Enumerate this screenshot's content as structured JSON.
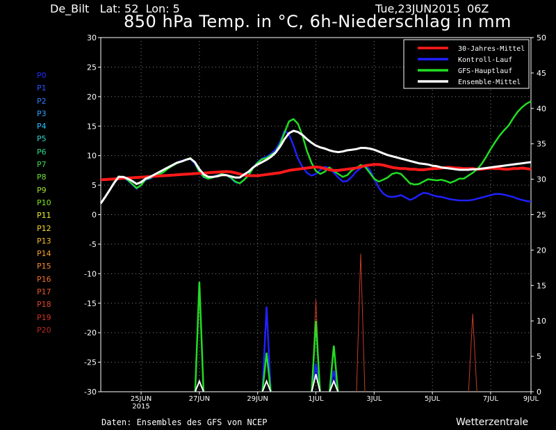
{
  "header": {
    "station": "De_Bilt   Lat: 52  Lon: 5",
    "datetime": "Tue,23JUN2015  06Z",
    "title": "850 hPa Temp. in °C, 6h-Niederschlag in mm"
  },
  "footer": {
    "source": "Daten: Ensembles des GFS von NCEP",
    "brand": "Wetterzentrale"
  },
  "members": [
    {
      "label": "P0",
      "color": "#1f2bff"
    },
    {
      "label": "P1",
      "color": "#2a55ff"
    },
    {
      "label": "P2",
      "color": "#2f7bff"
    },
    {
      "label": "P3",
      "color": "#2aa3ff"
    },
    {
      "label": "P4",
      "color": "#26c4ff"
    },
    {
      "label": "P5",
      "color": "#2ed4c8"
    },
    {
      "label": "P6",
      "color": "#33d98a"
    },
    {
      "label": "P7",
      "color": "#3fdc55"
    },
    {
      "label": "P8",
      "color": "#6fe03a"
    },
    {
      "label": "P9",
      "color": "#a6e22e"
    },
    {
      "label": "P10",
      "color": "#7fe81a"
    },
    {
      "label": "P11",
      "color": "#f0f02a"
    },
    {
      "label": "P12",
      "color": "#f5d82a"
    },
    {
      "label": "P13",
      "color": "#f5bd2a"
    },
    {
      "label": "P14",
      "color": "#f5a02a"
    },
    {
      "label": "P15",
      "color": "#f58a2a"
    },
    {
      "label": "P16",
      "color": "#f06e2a"
    },
    {
      "label": "P17",
      "color": "#e8582a"
    },
    {
      "label": "P18",
      "color": "#e0452a"
    },
    {
      "label": "P19",
      "color": "#d03226"
    },
    {
      "label": "P20",
      "color": "#b52a20"
    }
  ],
  "chart_data": {
    "type": "line",
    "x": [
      0,
      3,
      6,
      9,
      12,
      15,
      18,
      21,
      24,
      27,
      30,
      33,
      36,
      39,
      42,
      45,
      48,
      51,
      54,
      57,
      60,
      63,
      66,
      69,
      72,
      75,
      78,
      81,
      84,
      87,
      90,
      93,
      96,
      99,
      102,
      105,
      108,
      111,
      114,
      117,
      120,
      123,
      126,
      129,
      132,
      135,
      138,
      141,
      144,
      147,
      150,
      153,
      156,
      159,
      162,
      165,
      168,
      171,
      174,
      177,
      180,
      183,
      186,
      189,
      192,
      195,
      198,
      201,
      204,
      207,
      210,
      213,
      216,
      219,
      222,
      225,
      228,
      231,
      234,
      237,
      240,
      243,
      246,
      249,
      252,
      255,
      258,
      261,
      264,
      267,
      270,
      273,
      276,
      279,
      282,
      285,
      288
    ],
    "x_ticks": [
      {
        "label": "25JUN",
        "x": 27
      },
      {
        "label": "27JUN",
        "x": 66
      },
      {
        "label": "29JUN",
        "x": 105
      },
      {
        "label": "1JUL",
        "x": 144
      },
      {
        "label": "3JUL",
        "x": 183
      },
      {
        "label": "5JUL",
        "x": 222
      },
      {
        "label": "7JUL",
        "x": 261
      },
      {
        "label": "9JUL",
        "x": 288
      }
    ],
    "x_sublabel": "2015",
    "ylim_left": [
      -30,
      30
    ],
    "yticks_left": [
      "30",
      "25",
      "20",
      "15",
      "10",
      "5",
      "0",
      "-5",
      "-10",
      "-15",
      "-20",
      "-25",
      "-30"
    ],
    "ylim_right": [
      0,
      50
    ],
    "yticks_right": [
      "50",
      "45",
      "40",
      "35",
      "30",
      "25",
      "20",
      "15",
      "10",
      "5",
      "0"
    ],
    "grid": true,
    "legend_position": "top-right",
    "legend": [
      {
        "name": "30-Jahres-Mittel",
        "color": "#ff1a1a"
      },
      {
        "name": "Kontroll-Lauf",
        "color": "#2020ff"
      },
      {
        "name": "GFS-Hauptlauf",
        "color": "#22dd22"
      },
      {
        "name": "Ensemble-Mittel",
        "color": "#ffffff"
      }
    ],
    "temperature": {
      "climatology_30yr": [
        5.9,
        5.95,
        6,
        6.05,
        6.1,
        6.15,
        6.2,
        6.25,
        6.3,
        6.35,
        6.4,
        6.45,
        6.5,
        6.55,
        6.6,
        6.65,
        6.7,
        6.75,
        6.8,
        6.85,
        6.9,
        6.95,
        7,
        7.05,
        7.1,
        7.15,
        7.2,
        7.25,
        7.3,
        7.25,
        7.1,
        6.9,
        6.7,
        6.6,
        6.6,
        6.6,
        6.7,
        6.8,
        6.9,
        7,
        7.1,
        7.3,
        7.5,
        7.6,
        7.7,
        7.8,
        7.9,
        8,
        8.1,
        8,
        7.8,
        7.6,
        7.5,
        7.5,
        7.6,
        7.7,
        7.8,
        7.9,
        8.1,
        8.3,
        8.4,
        8.5,
        8.5,
        8.4,
        8.2,
        8,
        7.9,
        7.8,
        7.8,
        7.7,
        7.7,
        7.6,
        7.6,
        7.7,
        7.8,
        7.8,
        7.9,
        8,
        8,
        7.9,
        7.9,
        7.8,
        7.8,
        7.8,
        7.7,
        7.7,
        7.8,
        7.9,
        7.8,
        7.8,
        7.7,
        7.7,
        7.8,
        7.8,
        7.9,
        7.8,
        7.7
      ],
      "gfs_main": [
        1.9,
        3,
        4.2,
        5.4,
        6.5,
        6.3,
        5.9,
        5.2,
        4.5,
        5,
        6,
        6.2,
        6.6,
        6.8,
        7.2,
        7.8,
        8.3,
        8.7,
        9,
        9.3,
        9.6,
        8.8,
        7.3,
        6.4,
        6.1,
        6.3,
        6.6,
        6.9,
        6.7,
        6.3,
        5.6,
        5.3,
        5.9,
        6.7,
        7.9,
        8.8,
        9.4,
        9.6,
        10.1,
        10.6,
        11.9,
        13.9,
        15.8,
        16.2,
        15.4,
        13.4,
        10.8,
        8.8,
        7.4,
        6.9,
        7.3,
        8,
        7.4,
        6.9,
        6.4,
        6.7,
        7.5,
        7.9,
        8.4,
        8.1,
        7.1,
        6.1,
        5.6,
        5.9,
        6.3,
        6.9,
        7.1,
        6.9,
        6.1,
        5.3,
        5.1,
        5.2,
        5.6,
        6,
        5.9,
        5.8,
        5.9,
        5.7,
        5.4,
        5.7,
        6.1,
        6.1,
        6.6,
        7.1,
        7.7,
        8.6,
        9.8,
        11.1,
        12.3,
        13.4,
        14.3,
        15.1,
        16.3,
        17.4,
        18.2,
        18.8,
        19.2
      ],
      "control_run": [
        1.9,
        3,
        4.2,
        5.4,
        6.4,
        6.2,
        5.8,
        5.1,
        4.4,
        5,
        5.9,
        6.1,
        6.5,
        6.8,
        7.2,
        7.9,
        8.4,
        8.8,
        9.1,
        9.3,
        9.5,
        8.6,
        7.2,
        6.3,
        6.1,
        6.4,
        6.7,
        6.9,
        6.7,
        6.2,
        5.5,
        5.3,
        5.9,
        6.8,
        8,
        8.9,
        9.5,
        9.8,
        10.3,
        11,
        12.3,
        14.2,
        13.6,
        11.7,
        9.5,
        8.1,
        7.1,
        6.6,
        6.9,
        7.6,
        8.1,
        7.9,
        7.1,
        6.3,
        5.6,
        5.7,
        6.4,
        7.3,
        7.9,
        8.4,
        7.6,
        6.1,
        4.6,
        3.6,
        3.1,
        3,
        3.1,
        3.3,
        2.9,
        2.5,
        2.8,
        3.3,
        3.7,
        3.6,
        3.3,
        3.1,
        3,
        2.8,
        2.6,
        2.5,
        2.4,
        2.4,
        2.4,
        2.5,
        2.7,
        2.9,
        3.1,
        3.3,
        3.5,
        3.5,
        3.4,
        3.2,
        3,
        2.7,
        2.5,
        2.3,
        2.2
      ],
      "ensemble_mean": [
        1.9,
        3,
        4.2,
        5.4,
        6.4,
        6.4,
        6.1,
        5.7,
        5.2,
        5.5,
        6.1,
        6.4,
        6.8,
        7.2,
        7.6,
        8,
        8.4,
        8.8,
        9,
        9.3,
        9.5,
        8.9,
        7.7,
        6.8,
        6.4,
        6.4,
        6.5,
        6.7,
        6.7,
        6.5,
        6.3,
        6.3,
        6.8,
        7.3,
        8,
        8.5,
        8.9,
        9.3,
        9.8,
        10.5,
        11.5,
        12.8,
        13.8,
        14.2,
        14,
        13.5,
        12.8,
        12.2,
        11.7,
        11.4,
        11.2,
        10.9,
        10.7,
        10.6,
        10.7,
        10.9,
        11,
        11.1,
        11.3,
        11.3,
        11.2,
        11,
        10.7,
        10.4,
        10.1,
        9.9,
        9.7,
        9.5,
        9.3,
        9.1,
        8.9,
        8.7,
        8.6,
        8.5,
        8.3,
        8.2,
        8,
        7.9,
        7.8,
        7.7,
        7.6,
        7.6,
        7.6,
        7.7,
        7.7,
        7.8,
        7.9,
        8,
        8.1,
        8.2,
        8.3,
        8.4,
        8.5,
        8.6,
        8.7,
        8.8,
        8.9
      ]
    },
    "precipitation_6h_peaks_mm": {
      "gfs_main": [
        {
          "x": 66,
          "value": 15.5
        },
        {
          "x": 111,
          "value": 5.5
        },
        {
          "x": 144,
          "value": 10
        },
        {
          "x": 156,
          "value": 6.5
        }
      ],
      "control_run": [
        {
          "x": 111,
          "value": 12
        },
        {
          "x": 144,
          "value": 4
        },
        {
          "x": 156,
          "value": 3
        }
      ],
      "ensemble_mean": [
        {
          "x": 66,
          "value": 1.5
        },
        {
          "x": 111,
          "value": 1.5
        },
        {
          "x": 144,
          "value": 2.5
        },
        {
          "x": 156,
          "value": 1.5
        }
      ],
      "max_member": [
        {
          "x": 144,
          "value": 13
        },
        {
          "x": 174,
          "value": 19.5
        },
        {
          "x": 249,
          "value": 11
        }
      ]
    }
  }
}
